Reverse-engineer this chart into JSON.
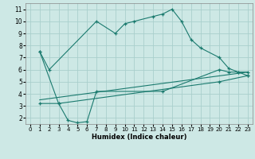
{
  "xlabel": "Humidex (Indice chaleur)",
  "background_color": "#cde8e5",
  "grid_color": "#aacfcc",
  "line_color": "#1a7a6e",
  "xlim": [
    -0.5,
    23.5
  ],
  "ylim": [
    1.5,
    11.5
  ],
  "xticks": [
    0,
    1,
    2,
    3,
    4,
    5,
    6,
    7,
    8,
    9,
    10,
    11,
    12,
    13,
    14,
    15,
    16,
    17,
    18,
    19,
    20,
    21,
    22,
    23
  ],
  "yticks": [
    2,
    3,
    4,
    5,
    6,
    7,
    8,
    9,
    10,
    11
  ],
  "line1_x": [
    1,
    2,
    7,
    9,
    10,
    11,
    13,
    14,
    15,
    16,
    17,
    18,
    20,
    21,
    22,
    23
  ],
  "line1_y": [
    7.5,
    6.0,
    10.0,
    9.0,
    9.8,
    10.0,
    10.4,
    10.6,
    11.0,
    10.0,
    8.5,
    7.8,
    7.0,
    6.1,
    5.8,
    5.8
  ],
  "line2_x": [
    1,
    3,
    4,
    5,
    6,
    7,
    14,
    20,
    21,
    22,
    23
  ],
  "line2_y": [
    7.5,
    3.2,
    1.8,
    1.6,
    1.7,
    4.2,
    4.2,
    6.0,
    5.8,
    5.8,
    5.5
  ],
  "line3_x": [
    1,
    3,
    20,
    23
  ],
  "line3_y": [
    3.2,
    3.2,
    5.0,
    5.5
  ],
  "line4_x": [
    1,
    23
  ],
  "line4_y": [
    3.5,
    5.8
  ],
  "xlabel_fontsize": 6.0,
  "tick_fontsize": 5.0,
  "ytick_fontsize": 5.5
}
